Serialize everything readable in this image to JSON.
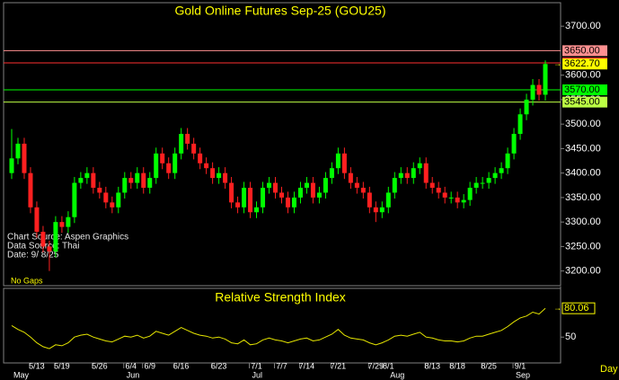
{
  "chart_data": {
    "type": "candlestick",
    "title": "Gold Online Futures Sep-25 (GOU25)",
    "categories": [
      null,
      null,
      null,
      null,
      "5/13",
      null,
      null,
      null,
      "5/19",
      null,
      null,
      null,
      null,
      null,
      "5/26",
      null,
      null,
      null,
      null,
      "6/4",
      null,
      null,
      "6/9",
      null,
      null,
      null,
      null,
      "6/16",
      null,
      null,
      null,
      null,
      null,
      "6/23",
      null,
      null,
      null,
      null,
      null,
      "7/1",
      null,
      null,
      null,
      "7/7",
      null,
      null,
      null,
      "7/14",
      null,
      null,
      null,
      null,
      "7/21",
      null,
      null,
      null,
      null,
      null,
      "7/29",
      null,
      "8/1",
      null,
      null,
      null,
      null,
      null,
      null,
      "8/13",
      null,
      null,
      null,
      "8/18",
      null,
      null,
      null,
      null,
      "8/25",
      null,
      null,
      null,
      null,
      "9/1",
      null,
      null,
      null,
      null
    ],
    "month_categories": [
      "May",
      null,
      null,
      null,
      null,
      null,
      null,
      null,
      null,
      null,
      null,
      null,
      null,
      null,
      null,
      null,
      null,
      null,
      "Jun",
      null,
      null,
      null,
      null,
      null,
      null,
      null,
      null,
      null,
      null,
      null,
      null,
      null,
      null,
      null,
      null,
      null,
      null,
      null,
      "Jul",
      null,
      null,
      null,
      null,
      null,
      null,
      null,
      null,
      null,
      null,
      null,
      null,
      null,
      null,
      null,
      null,
      null,
      null,
      null,
      null,
      null,
      "Aug",
      null,
      null,
      null,
      null,
      null,
      null,
      null,
      null,
      null,
      null,
      null,
      null,
      null,
      null,
      null,
      null,
      null,
      null,
      null,
      "Sep",
      null,
      null,
      null,
      null,
      null
    ],
    "open": [
      3400,
      3430,
      3460,
      3400,
      3330,
      3280,
      3250,
      3240,
      3300,
      3290,
      3310,
      3380,
      3390,
      3400,
      3370,
      3360,
      3340,
      3330,
      3360,
      3390,
      3380,
      3400,
      3370,
      3390,
      3440,
      3420,
      3400,
      3440,
      3480,
      3460,
      3440,
      3420,
      3410,
      3390,
      3400,
      3380,
      3340,
      3330,
      3370,
      3320,
      3330,
      3370,
      3380,
      3360,
      3350,
      3330,
      3350,
      3370,
      3380,
      3350,
      3360,
      3390,
      3410,
      3440,
      3400,
      3380,
      3370,
      3360,
      3330,
      3320,
      3330,
      3360,
      3390,
      3400,
      3390,
      3410,
      3420,
      3380,
      3370,
      3360,
      3350,
      3350,
      3340,
      3345,
      3370,
      3380,
      3380,
      3390,
      3400,
      3410,
      3440,
      3480,
      3520,
      3550,
      3580,
      3560
    ],
    "high": [
      3490,
      3472,
      3472,
      3412,
      3342,
      3292,
      3262,
      3312,
      3312,
      3322,
      3392,
      3402,
      3412,
      3412,
      3382,
      3372,
      3352,
      3372,
      3402,
      3402,
      3412,
      3412,
      3402,
      3452,
      3452,
      3432,
      3452,
      3492,
      3492,
      3472,
      3452,
      3432,
      3422,
      3412,
      3412,
      3392,
      3352,
      3382,
      3382,
      3342,
      3382,
      3392,
      3392,
      3372,
      3362,
      3362,
      3382,
      3392,
      3392,
      3372,
      3402,
      3422,
      3452,
      3452,
      3412,
      3392,
      3382,
      3372,
      3342,
      3342,
      3372,
      3402,
      3412,
      3412,
      3422,
      3432,
      3432,
      3392,
      3382,
      3372,
      3362,
      3362,
      3357,
      3382,
      3392,
      3392,
      3402,
      3412,
      3422,
      3452,
      3492,
      3532,
      3562,
      3592,
      3592,
      3630
    ],
    "low": [
      3388,
      3418,
      3388,
      3318,
      3268,
      3238,
      3200,
      3228,
      3278,
      3278,
      3298,
      3368,
      3378,
      3358,
      3348,
      3328,
      3318,
      3318,
      3348,
      3368,
      3368,
      3358,
      3358,
      3378,
      3408,
      3388,
      3388,
      3428,
      3448,
      3428,
      3408,
      3398,
      3378,
      3378,
      3368,
      3328,
      3318,
      3318,
      3308,
      3308,
      3318,
      3358,
      3348,
      3338,
      3318,
      3318,
      3338,
      3358,
      3338,
      3338,
      3348,
      3378,
      3398,
      3388,
      3368,
      3358,
      3348,
      3318,
      3300,
      3308,
      3318,
      3348,
      3378,
      3378,
      3378,
      3398,
      3368,
      3358,
      3348,
      3338,
      3338,
      3328,
      3328,
      3333,
      3358,
      3368,
      3368,
      3378,
      3388,
      3398,
      3428,
      3468,
      3508,
      3538,
      3548,
      3548
    ],
    "close": [
      3430,
      3460,
      3400,
      3330,
      3280,
      3250,
      3240,
      3300,
      3290,
      3310,
      3380,
      3390,
      3400,
      3370,
      3360,
      3340,
      3330,
      3360,
      3390,
      3380,
      3400,
      3370,
      3390,
      3440,
      3420,
      3400,
      3440,
      3480,
      3460,
      3440,
      3420,
      3410,
      3390,
      3400,
      3380,
      3340,
      3330,
      3370,
      3320,
      3330,
      3370,
      3380,
      3360,
      3350,
      3330,
      3350,
      3370,
      3380,
      3350,
      3360,
      3390,
      3410,
      3440,
      3400,
      3380,
      3370,
      3360,
      3330,
      3320,
      3330,
      3360,
      3390,
      3400,
      3390,
      3410,
      3420,
      3380,
      3370,
      3360,
      3350,
      3350,
      3340,
      3345,
      3370,
      3380,
      3380,
      3390,
      3400,
      3410,
      3440,
      3480,
      3520,
      3550,
      3580,
      3560,
      3622.7
    ],
    "last_price_label": "3622.70",
    "up_color": "#00ff00",
    "down_color": "#ff2020",
    "ylim": [
      3170,
      3748
    ],
    "yticks": [
      {
        "value": 3200,
        "label": "3200.00"
      },
      {
        "value": 3250,
        "label": "3250.00"
      },
      {
        "value": 3300,
        "label": "3300.00"
      },
      {
        "value": 3350,
        "label": "3350.00"
      },
      {
        "value": 3400,
        "label": "3400.00"
      },
      {
        "value": 3450,
        "label": "3450.00"
      },
      {
        "value": 3500,
        "label": "3500.00"
      },
      {
        "value": 3550,
        "label": "3550.00"
      },
      {
        "value": 3600,
        "label": "3600.00"
      },
      {
        "value": 3700,
        "label": "3700.00"
      }
    ],
    "levels": [
      {
        "value": 3650,
        "label": "3650.00",
        "color": "#ff9090"
      },
      {
        "value": 3625,
        "label": "3625.00",
        "color": "#ff3030"
      },
      {
        "value": 3570,
        "label": "3570.00",
        "color": "#00ff00"
      },
      {
        "value": 3545,
        "label": "3545.00",
        "color": "#bbff44"
      }
    ],
    "annotations": [
      "Chart Source: Aspen Graphics",
      "Data Source: Thai",
      "Date:   9/ 8/25"
    ],
    "note": "No Gaps",
    "x_unit": "Day",
    "rsi": {
      "title": "Relative Strength Index",
      "color": "#e6e600",
      "ylim": [
        24,
        98
      ],
      "yticks": [
        50
      ],
      "values": [
        62,
        58,
        55,
        50,
        44,
        40,
        38,
        42,
        41,
        44,
        50,
        52,
        53,
        50,
        48,
        46,
        45,
        48,
        51,
        50,
        52,
        49,
        51,
        56,
        54,
        52,
        56,
        60,
        57,
        54,
        52,
        51,
        49,
        50,
        48,
        44,
        43,
        47,
        42,
        43,
        47,
        49,
        47,
        46,
        44,
        46,
        48,
        49,
        46,
        47,
        50,
        53,
        58,
        52,
        49,
        48,
        47,
        44,
        42,
        44,
        47,
        51,
        52,
        51,
        53,
        55,
        50,
        49,
        47,
        46,
        46,
        45,
        46,
        49,
        51,
        51,
        53,
        55,
        57,
        61,
        66,
        70,
        72,
        76,
        74,
        80.06
      ]
    }
  }
}
